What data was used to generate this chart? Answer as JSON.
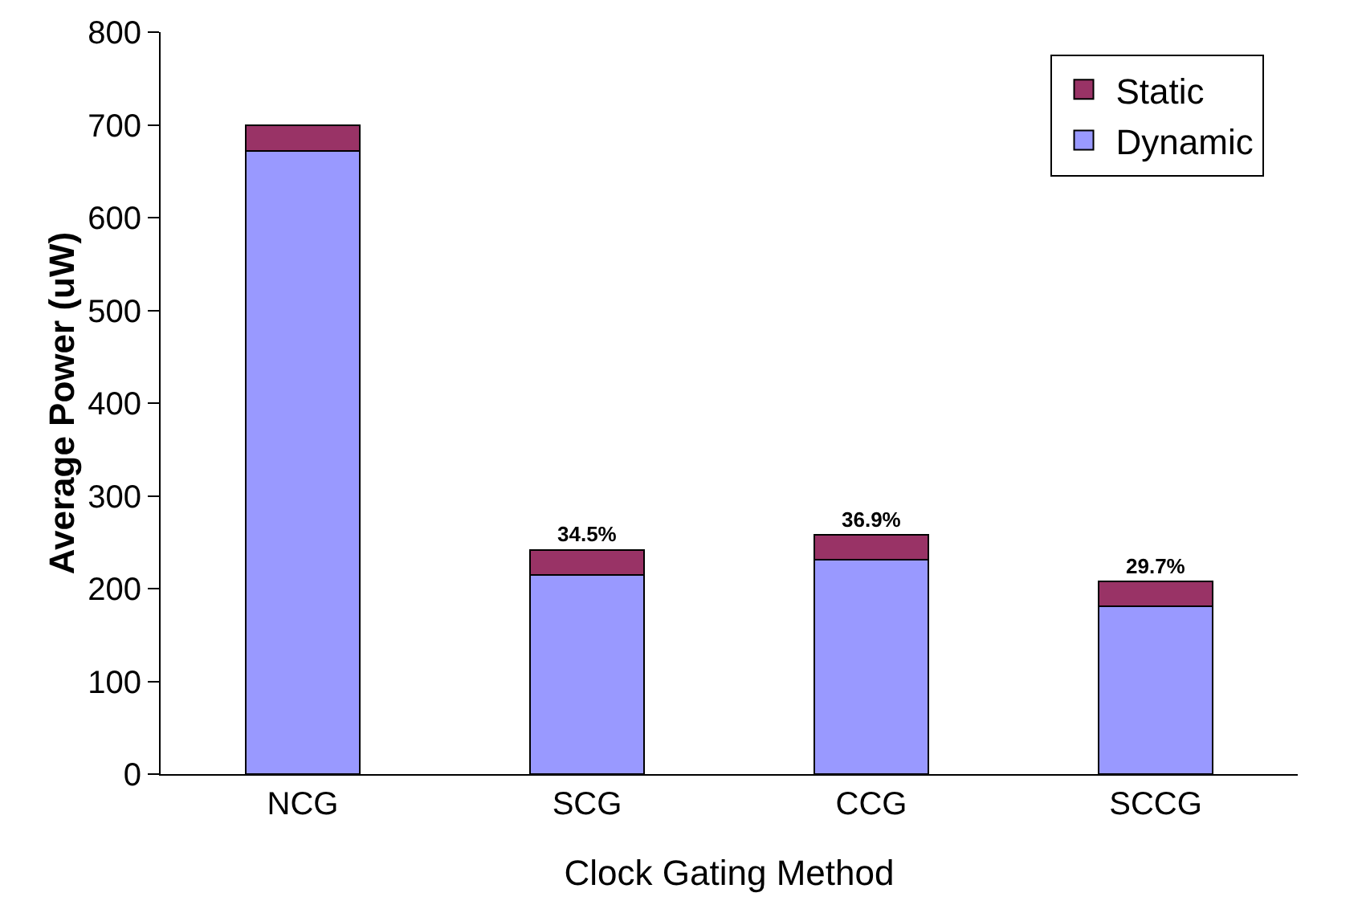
{
  "chart_data": {
    "type": "bar",
    "stacked": true,
    "xlabel": "Clock Gating Method",
    "ylabel": "Average Power (uW)",
    "categories": [
      "NCG",
      "SCG",
      "CCG",
      "SCCG"
    ],
    "series": [
      {
        "name": "Dynamic",
        "color": "#9999ff",
        "values": [
          672,
          215,
          231,
          181
        ]
      },
      {
        "name": "Static",
        "color": "#993366",
        "values": [
          28,
          27,
          27,
          27
        ]
      }
    ],
    "ylim": [
      0,
      800
    ],
    "yticks": [
      0,
      100,
      200,
      300,
      400,
      500,
      600,
      700,
      800
    ],
    "grid": false,
    "legend": "top right",
    "annotations": [
      {
        "text": "34.5%",
        "x": "SCG",
        "y": 242
      },
      {
        "text": "36.9%",
        "x": "CCG",
        "y": 258
      },
      {
        "text": "29.7%",
        "x": "SCCG",
        "y": 208
      }
    ]
  }
}
